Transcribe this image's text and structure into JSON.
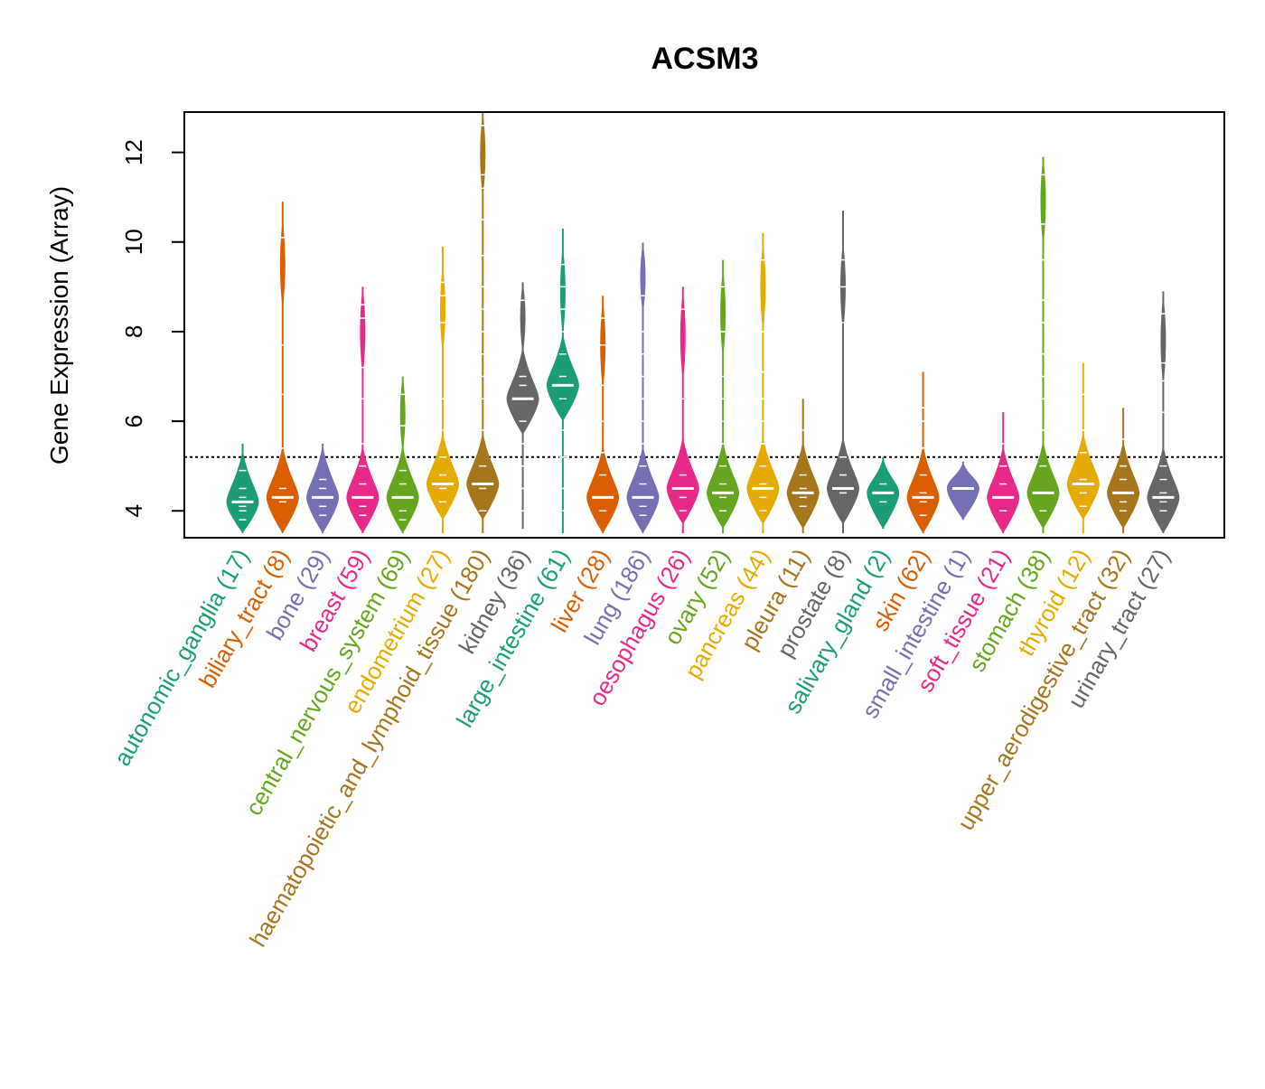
{
  "chart_data": {
    "type": "violin",
    "title": "ACSM3",
    "ylabel": "Gene Expression (Array)",
    "xlabel": "",
    "ylim": [
      3.4,
      12.9
    ],
    "yticks": [
      4,
      6,
      8,
      10,
      12
    ],
    "reference_line": 5.2,
    "grid": false,
    "legend": "none",
    "categories": [
      {
        "label": "autonomic_ganglia (17)",
        "color": "#1B9E77",
        "min": 3.5,
        "max": 5.5,
        "median": 4.2,
        "points": [
          3.8,
          4.0,
          4.1,
          4.2,
          4.3,
          4.5,
          4.9
        ]
      },
      {
        "label": "biliary_tract (8)",
        "color": "#D95F02",
        "min": 3.5,
        "max": 10.9,
        "median": 4.3,
        "points": [
          4.2,
          4.5,
          5.4,
          6.6,
          7.7,
          10.1
        ]
      },
      {
        "label": "bone (29)",
        "color": "#7570B3",
        "min": 3.5,
        "max": 5.5,
        "median": 4.3,
        "points": [
          3.9,
          4.1,
          4.3,
          4.5,
          4.7
        ]
      },
      {
        "label": "breast (59)",
        "color": "#E7298A",
        "min": 3.5,
        "max": 9.0,
        "median": 4.3,
        "points": [
          3.9,
          4.1,
          4.3,
          4.6,
          5.0,
          5.5,
          6.5,
          7.2,
          8.3,
          8.6
        ]
      },
      {
        "label": "central_nervous_system (69)",
        "color": "#66A61E",
        "min": 3.5,
        "max": 7.0,
        "median": 4.3,
        "points": [
          3.8,
          4.0,
          4.3,
          4.6,
          4.9,
          5.9,
          6.6
        ]
      },
      {
        "label": "endometrium (27)",
        "color": "#E6AB02",
        "min": 3.5,
        "max": 9.9,
        "median": 4.6,
        "points": [
          4.2,
          4.5,
          4.8,
          5.2,
          5.8,
          6.5,
          8.2,
          8.8,
          9.1
        ]
      },
      {
        "label": "haematopoietic_and_lymphoid_tissue (180)",
        "color": "#A6761D",
        "min": 3.5,
        "max": 12.9,
        "median": 4.6,
        "points": [
          4.0,
          4.5,
          5.0,
          5.8,
          6.5,
          7.0,
          7.5,
          8.0,
          8.5,
          9.0,
          9.7,
          10.5,
          11.2,
          11.5,
          12.6
        ]
      },
      {
        "label": "kidney (36)",
        "color": "#666666",
        "min": 3.6,
        "max": 9.1,
        "median": 6.5,
        "points": [
          4.0,
          4.5,
          5.0,
          5.5,
          6.0,
          6.5,
          6.8,
          7.0,
          8.7
        ]
      },
      {
        "label": "large_intestine (61)",
        "color": "#1B9E77",
        "min": 3.5,
        "max": 10.3,
        "median": 6.8,
        "points": [
          4.0,
          4.5,
          5.2,
          5.8,
          6.5,
          7.0,
          7.5,
          8.0,
          8.5,
          9.0,
          9.5
        ]
      },
      {
        "label": "liver (28)",
        "color": "#D95F02",
        "min": 3.5,
        "max": 8.8,
        "median": 4.3,
        "points": [
          4.0,
          4.3,
          4.8,
          5.3,
          6.0,
          6.8,
          7.7,
          8.3
        ]
      },
      {
        "label": "lung (186)",
        "color": "#7570B3",
        "min": 3.5,
        "max": 10.0,
        "median": 4.3,
        "points": [
          3.9,
          4.1,
          4.3,
          4.6,
          5.0,
          5.5,
          6.0,
          6.5,
          7.0,
          7.5,
          8.0,
          8.8,
          10.0
        ]
      },
      {
        "label": "oesophagus (26)",
        "color": "#E7298A",
        "min": 3.5,
        "max": 9.0,
        "median": 4.5,
        "points": [
          4.0,
          4.3,
          4.5,
          4.8,
          6.5,
          8.5
        ]
      },
      {
        "label": "ovary (52)",
        "color": "#66A61E",
        "min": 3.5,
        "max": 9.6,
        "median": 4.4,
        "points": [
          4.0,
          4.3,
          4.6,
          5.0,
          5.5,
          6.0,
          6.5,
          7.0,
          8.0,
          9.0
        ]
      },
      {
        "label": "pancreas (44)",
        "color": "#E6AB02",
        "min": 3.5,
        "max": 10.2,
        "median": 4.5,
        "points": [
          4.0,
          4.3,
          4.6,
          5.0,
          5.5,
          6.0,
          6.5,
          7.1,
          8.0,
          9.6
        ]
      },
      {
        "label": "pleura (11)",
        "color": "#A6761D",
        "min": 3.5,
        "max": 6.5,
        "median": 4.4,
        "points": [
          4.1,
          4.3,
          4.5,
          4.8,
          5.8
        ]
      },
      {
        "label": "prostate (8)",
        "color": "#666666",
        "min": 3.5,
        "max": 10.7,
        "median": 4.5,
        "points": [
          4.4,
          4.8,
          5.2,
          8.2,
          9.0,
          9.6
        ]
      },
      {
        "label": "salivary_gland (2)",
        "color": "#1B9E77",
        "min": 3.6,
        "max": 5.2,
        "median": 4.4,
        "points": [
          4.2,
          4.6
        ]
      },
      {
        "label": "skin (62)",
        "color": "#D95F02",
        "min": 3.5,
        "max": 7.1,
        "median": 4.3,
        "points": [
          3.9,
          4.2,
          4.4,
          4.8,
          5.4,
          6.0,
          6.3
        ]
      },
      {
        "label": "small_intestine (1)",
        "color": "#7570B3",
        "min": 3.8,
        "max": 5.1,
        "median": 4.5,
        "points": [
          4.5
        ]
      },
      {
        "label": "soft_tissue (21)",
        "color": "#E7298A",
        "min": 3.5,
        "max": 6.2,
        "median": 4.3,
        "points": [
          4.0,
          4.3,
          4.6,
          5.0,
          5.5
        ]
      },
      {
        "label": "stomach (38)",
        "color": "#66A61E",
        "min": 3.5,
        "max": 11.9,
        "median": 4.4,
        "points": [
          4.0,
          4.4,
          5.0,
          5.8,
          6.5,
          7.0,
          7.5,
          8.2,
          8.7,
          9.6,
          10.4,
          11.5
        ]
      },
      {
        "label": "thyroid (12)",
        "color": "#E6AB02",
        "min": 3.5,
        "max": 7.3,
        "median": 4.6,
        "points": [
          4.1,
          4.4,
          4.7,
          5.3,
          5.8,
          6.6
        ]
      },
      {
        "label": "upper_aerodigestive_tract (32)",
        "color": "#A6761D",
        "min": 3.5,
        "max": 6.3,
        "median": 4.4,
        "points": [
          4.0,
          4.2,
          4.4,
          4.7,
          5.0,
          5.6
        ]
      },
      {
        "label": "urinary_tract (27)",
        "color": "#666666",
        "min": 3.5,
        "max": 8.9,
        "median": 4.3,
        "points": [
          4.0,
          4.2,
          4.4,
          4.7,
          5.0,
          6.2,
          6.9,
          7.3,
          8.4
        ]
      }
    ]
  }
}
